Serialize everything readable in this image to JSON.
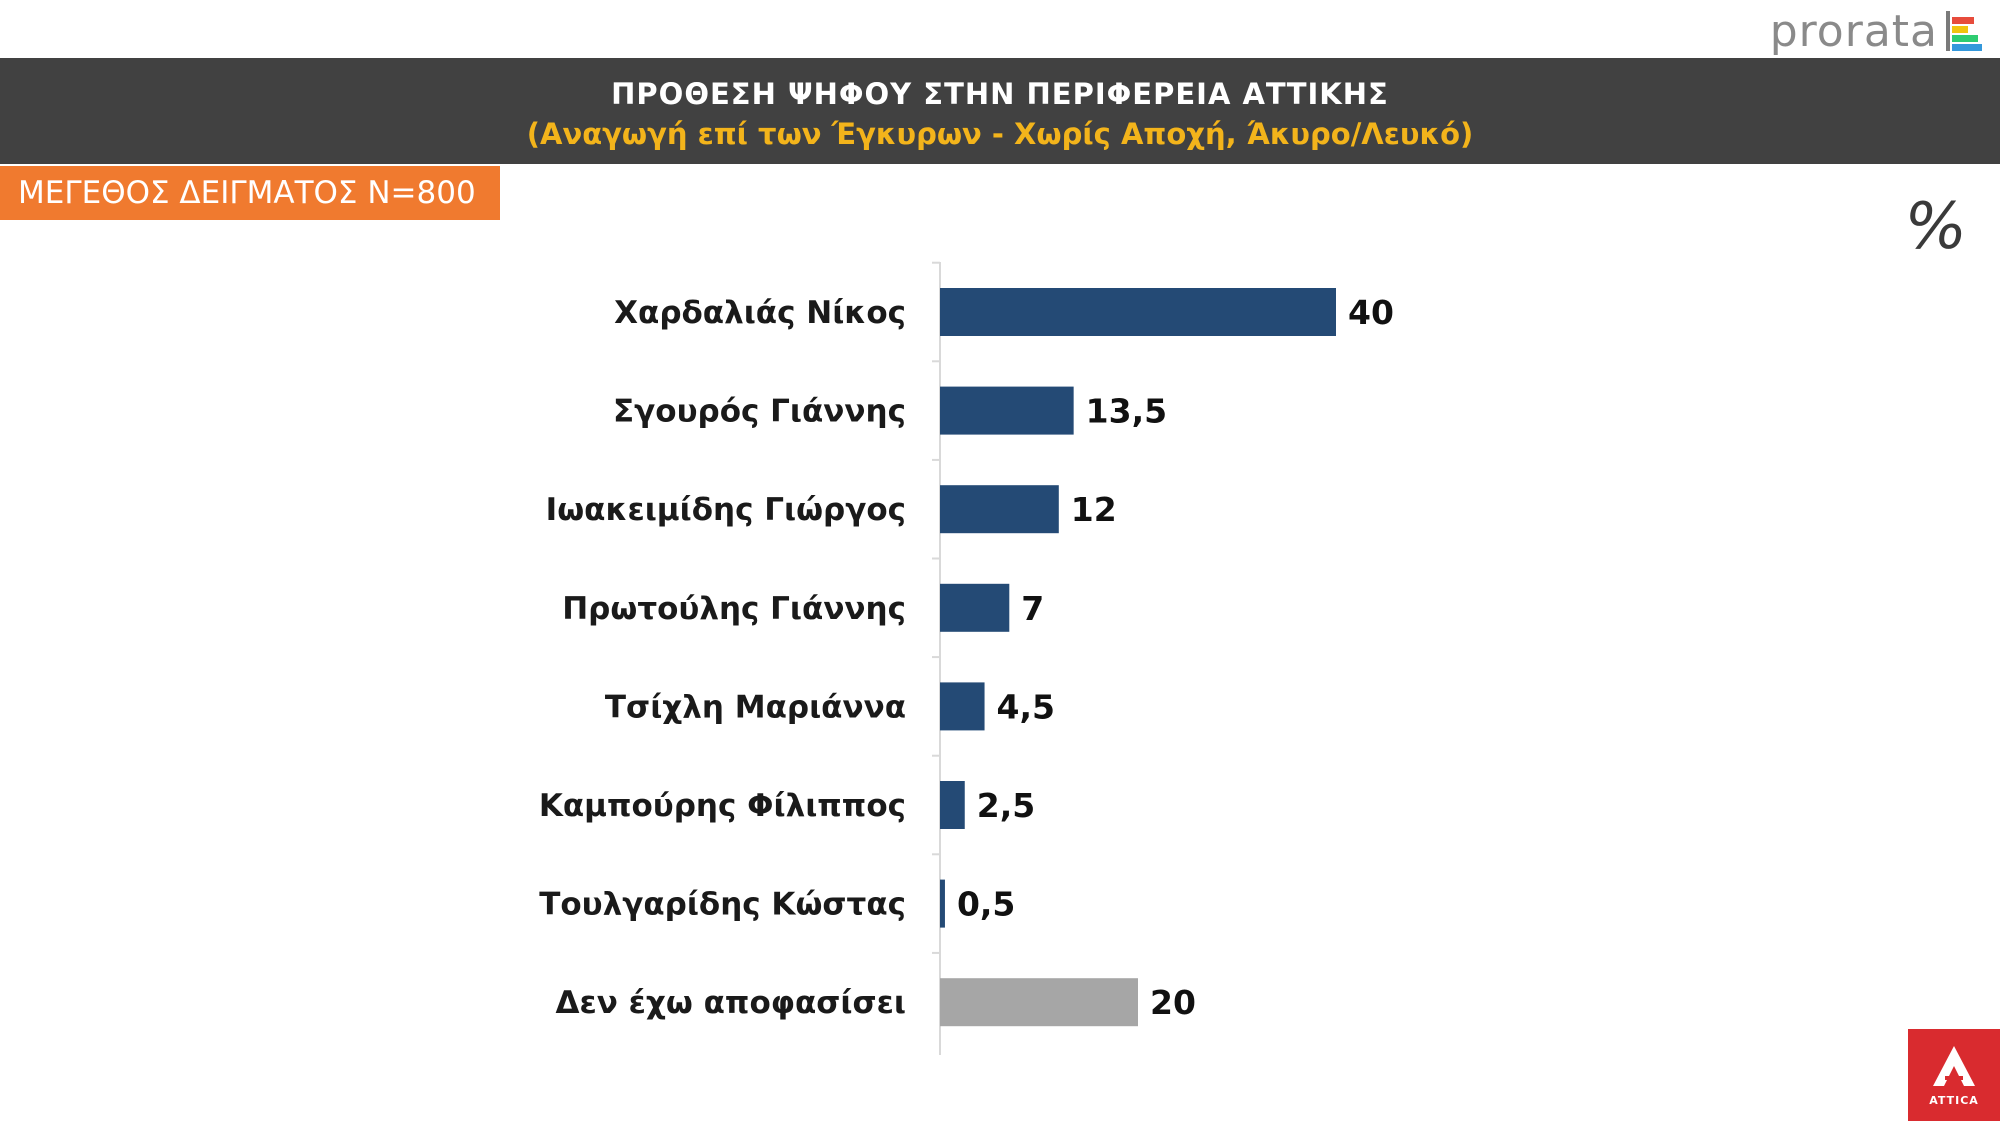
{
  "logo": {
    "text": "prorata",
    "bar_colors": [
      "#e74c3c",
      "#f1c40f",
      "#2ecc71",
      "#3498db"
    ]
  },
  "header": {
    "title": "ΠΡΟΘΕΣΗ ΨΗΦΟΥ ΣΤΗΝ ΠΕΡΙΦΕΡΕΙΑ ΑΤΤΙΚΗΣ",
    "subtitle": "(Αναγωγή επί των Έγκυρων - Χωρίς Αποχή, Άκυρο/Λευκό)"
  },
  "sample_size": "ΜΕΓΕΘΟΣ ΔΕΙΓΜΑΤΟΣ Ν=800",
  "unit_symbol": "%",
  "corner_logo": {
    "icon": "attica-a-icon",
    "caption": "ATTICA",
    "color": "#d92b2f"
  },
  "chart_data": {
    "type": "bar",
    "orientation": "horizontal",
    "categories": [
      "Χαρδαλιάς Νίκος",
      "Σγουρός Γιάννης",
      "Ιωακειμίδης Γιώργος",
      "Πρωτούλης Γιάννης",
      "Τσίχλη Μαριάννα",
      "Καμπούρης Φίλιππος",
      "Τουλγαρίδης Κώστας",
      "Δεν έχω αποφασίσει"
    ],
    "values": [
      40,
      13.5,
      12,
      7,
      4.5,
      2.5,
      0.5,
      20
    ],
    "value_labels": [
      "40",
      "13,5",
      "12",
      "7",
      "4,5",
      "2,5",
      "0,5",
      "20"
    ],
    "colors": [
      "#244a75",
      "#244a75",
      "#244a75",
      "#244a75",
      "#244a75",
      "#244a75",
      "#244a75",
      "#a6a6a6"
    ],
    "unit": "%",
    "xlim": [
      0,
      100
    ],
    "grid": false,
    "legend": "none"
  }
}
